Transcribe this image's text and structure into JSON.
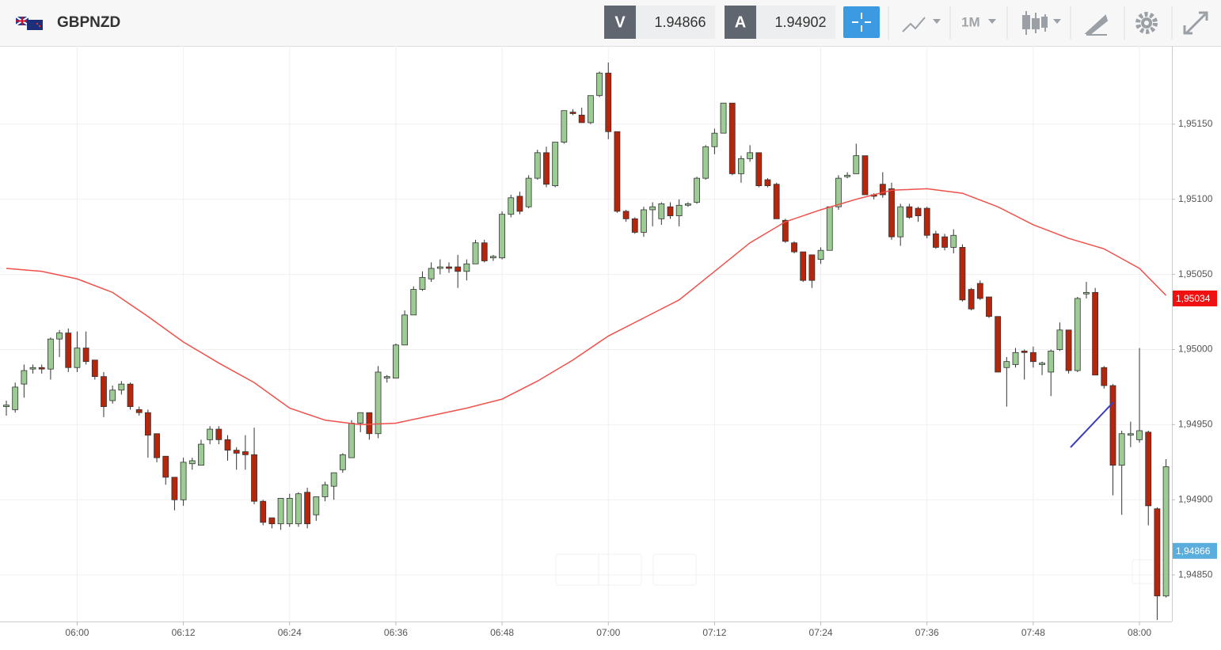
{
  "header": {
    "symbol": "GBPNZD",
    "bid_label": "V",
    "bid": "1.94866",
    "ask_label": "A",
    "ask": "1.94902",
    "timeframe": "1M"
  },
  "chart_data": {
    "type": "candlestick",
    "x": [
      "05:52",
      "05:53",
      "05:54",
      "05:55",
      "05:56",
      "05:57",
      "05:58",
      "05:59",
      "06:00",
      "06:01",
      "06:02",
      "06:03",
      "06:04",
      "06:05",
      "06:06",
      "06:07",
      "06:08",
      "06:09",
      "06:10",
      "06:11",
      "06:12",
      "06:13",
      "06:14",
      "06:15",
      "06:16",
      "06:17",
      "06:18",
      "06:19",
      "06:20",
      "06:21",
      "06:22",
      "06:23",
      "06:24",
      "06:25",
      "06:26",
      "06:27",
      "06:28",
      "06:29",
      "06:30",
      "06:31",
      "06:32",
      "06:33",
      "06:34",
      "06:35",
      "06:36",
      "06:37",
      "06:38",
      "06:39",
      "06:40",
      "06:41",
      "06:42",
      "06:43",
      "06:44",
      "06:45",
      "06:46",
      "06:47",
      "06:48",
      "06:49",
      "06:50",
      "06:51",
      "06:52",
      "06:53",
      "06:54",
      "06:55",
      "06:56",
      "06:57",
      "06:58",
      "06:59",
      "07:00",
      "07:01",
      "07:02",
      "07:03",
      "07:04",
      "07:05",
      "07:06",
      "07:07",
      "07:08",
      "07:09",
      "07:10",
      "07:11",
      "07:12",
      "07:13",
      "07:14",
      "07:15",
      "07:16",
      "07:17",
      "07:18",
      "07:19",
      "07:20",
      "07:21",
      "07:22",
      "07:23",
      "07:24",
      "07:25",
      "07:26",
      "07:27",
      "07:28",
      "07:29",
      "07:30",
      "07:31",
      "07:32",
      "07:33",
      "07:34",
      "07:35",
      "07:36",
      "07:37",
      "07:38",
      "07:39",
      "07:40",
      "07:41",
      "07:42",
      "07:43",
      "07:44",
      "07:45",
      "07:46",
      "07:47",
      "07:48",
      "07:49",
      "07:50",
      "07:51",
      "07:52",
      "07:53",
      "07:54",
      "07:55",
      "07:56",
      "07:57",
      "07:58",
      "07:59",
      "08:00",
      "08:01",
      "08:02",
      "08:03"
    ],
    "open": [
      1.94962,
      1.9496,
      1.94977,
      1.94987,
      1.94988,
      1.94987,
      1.95007,
      1.95011,
      1.94988,
      1.95001,
      1.94993,
      1.94982,
      1.94966,
      1.94973,
      1.94977,
      1.9496,
      1.94958,
      1.94944,
      1.94929,
      1.94915,
      1.949,
      1.94924,
      1.94923,
      1.9494,
      1.94947,
      1.9494,
      1.94933,
      1.94932,
      1.9493,
      1.94899,
      1.94888,
      1.94884,
      1.94884,
      1.94884,
      1.94905,
      1.9489,
      1.94902,
      1.94909,
      1.9492,
      1.94928,
      1.94951,
      1.94958,
      1.94944,
      1.94981,
      1.94981,
      1.95003,
      1.95023,
      1.9504,
      1.95047,
      1.95054,
      1.95055,
      1.95055,
      1.95052,
      1.95057,
      1.95071,
      1.95061,
      1.95061,
      1.9509,
      1.95102,
      1.95095,
      1.95114,
      1.95131,
      1.95109,
      1.95138,
      1.95158,
      1.95156,
      1.95151,
      1.95169,
      1.95184,
      1.95145,
      1.95092,
      1.95087,
      1.95078,
      1.95093,
      1.95087,
      1.95095,
      1.95089,
      1.95096,
      1.95098,
      1.95114,
      1.95135,
      1.95144,
      1.95164,
      1.95117,
      1.95127,
      1.95131,
      1.95113,
      1.9511,
      1.95086,
      1.95071,
      1.95065,
      1.95063,
      1.9506,
      1.95066,
      1.95095,
      1.95115,
      1.95117,
      1.95129,
      1.95103,
      1.9511,
      1.95107,
      1.95075,
      1.95095,
      1.95094,
      1.95094,
      1.95077,
      1.95075,
      1.95068,
      1.95068,
      1.9504,
      1.95044,
      1.95035,
      1.95022,
      1.94988,
      1.9499,
      1.94999,
      1.94998,
      1.9499,
      1.94985,
      1.95,
      1.95013,
      1.94986,
      1.95037,
      1.95038,
      1.94988,
      1.94976,
      1.94923,
      1.94943,
      1.9494,
      1.94945,
      1.94894,
      1.94836
    ],
    "high": [
      1.94966,
      1.94978,
      1.9499,
      1.9499,
      1.9499,
      1.95008,
      1.95013,
      1.95014,
      1.95012,
      1.95012,
      1.94993,
      1.94985,
      1.94976,
      1.94979,
      1.94978,
      1.94962,
      1.9496,
      1.94944,
      1.94929,
      1.94915,
      1.94928,
      1.94928,
      1.9494,
      1.94949,
      1.94949,
      1.94943,
      1.94935,
      1.94943,
      1.94948,
      1.949,
      1.94888,
      1.94901,
      1.94904,
      1.94905,
      1.94908,
      1.94902,
      1.94912,
      1.94918,
      1.94931,
      1.94953,
      1.94958,
      1.94958,
      1.94989,
      1.94983,
      1.95004,
      1.95026,
      1.95042,
      1.95052,
      1.95058,
      1.9506,
      1.95058,
      1.95063,
      1.9506,
      1.95073,
      1.95073,
      1.95063,
      1.95092,
      1.95103,
      1.95105,
      1.95116,
      1.95133,
      1.95135,
      1.95138,
      1.95159,
      1.9516,
      1.95161,
      1.95169,
      1.95185,
      1.95191,
      1.95145,
      1.95093,
      1.95088,
      1.95095,
      1.95098,
      1.95098,
      1.95098,
      1.951,
      1.95098,
      1.95115,
      1.95136,
      1.95147,
      1.95164,
      1.95164,
      1.95129,
      1.95136,
      1.95131,
      1.95114,
      1.95111,
      1.95087,
      1.95072,
      1.95065,
      1.95063,
      1.95068,
      1.95095,
      1.95116,
      1.95118,
      1.95137,
      1.95129,
      1.95104,
      1.95118,
      1.95111,
      1.95097,
      1.95097,
      1.95095,
      1.95095,
      1.95079,
      1.95077,
      1.9508,
      1.9507,
      1.95041,
      1.95046,
      1.95035,
      1.95022,
      1.94995,
      1.95001,
      1.95,
      1.95002,
      1.94992,
      1.95,
      1.95018,
      1.95013,
      1.95035,
      1.95045,
      1.95041,
      1.94989,
      1.94977,
      1.94946,
      1.94952,
      1.95001,
      1.94946,
      1.94895,
      1.94927
    ],
    "low": [
      1.94956,
      1.94958,
      1.94968,
      1.94984,
      1.94984,
      1.9498,
      1.94995,
      1.94985,
      1.94985,
      1.9499,
      1.9498,
      1.94955,
      1.94964,
      1.9497,
      1.9496,
      1.94956,
      1.94928,
      1.94925,
      1.9491,
      1.94893,
      1.94896,
      1.9492,
      1.94923,
      1.94937,
      1.94937,
      1.94926,
      1.9492,
      1.9492,
      1.94897,
      1.94883,
      1.94881,
      1.9488,
      1.94882,
      1.94882,
      1.94881,
      1.94886,
      1.94899,
      1.949,
      1.94918,
      1.94928,
      1.94945,
      1.9494,
      1.94941,
      1.94978,
      1.94981,
      1.95003,
      1.95023,
      1.95039,
      1.95045,
      1.9505,
      1.95051,
      1.95041,
      1.95046,
      1.95057,
      1.95058,
      1.95059,
      1.9506,
      1.95088,
      1.9509,
      1.95094,
      1.95113,
      1.95108,
      1.95108,
      1.95137,
      1.95156,
      1.95151,
      1.9515,
      1.95168,
      1.9514,
      1.95091,
      1.95085,
      1.95077,
      1.95075,
      1.95082,
      1.95083,
      1.95087,
      1.95082,
      1.95095,
      1.95097,
      1.95113,
      1.9513,
      1.95144,
      1.95116,
      1.95111,
      1.95125,
      1.95108,
      1.95108,
      1.95087,
      1.95071,
      1.95064,
      1.95045,
      1.95041,
      1.95057,
      1.95066,
      1.95093,
      1.95114,
      1.95117,
      1.95103,
      1.951,
      1.95101,
      1.95073,
      1.95069,
      1.95087,
      1.95085,
      1.95074,
      1.95067,
      1.95066,
      1.95064,
      1.95032,
      1.95026,
      1.95033,
      1.95021,
      1.94985,
      1.94962,
      1.94988,
      1.9498,
      1.94988,
      1.94983,
      1.94969,
      1.94999,
      1.94984,
      1.94985,
      1.95034,
      1.94983,
      1.94974,
      1.94903,
      1.9489,
      1.94935,
      1.94938,
      1.94883,
      1.9482,
      1.94835
    ],
    "close": [
      1.94963,
      1.94975,
      1.94986,
      1.94988,
      1.94987,
      1.95007,
      1.95011,
      1.94988,
      1.95001,
      1.94992,
      1.94982,
      1.94962,
      1.94973,
      1.94977,
      1.94962,
      1.94958,
      1.94943,
      1.94928,
      1.94915,
      1.949,
      1.94925,
      1.94926,
      1.94937,
      1.94947,
      1.9494,
      1.94933,
      1.94931,
      1.9493,
      1.94899,
      1.94885,
      1.94884,
      1.94901,
      1.94901,
      1.94904,
      1.94884,
      1.94902,
      1.9491,
      1.94918,
      1.9493,
      1.94951,
      1.94958,
      1.94944,
      1.94985,
      1.94982,
      1.95003,
      1.95023,
      1.9504,
      1.95048,
      1.95054,
      1.95055,
      1.95054,
      1.95052,
      1.95057,
      1.95071,
      1.95059,
      1.95062,
      1.9509,
      1.95101,
      1.95092,
      1.95114,
      1.95131,
      1.9511,
      1.95138,
      1.95159,
      1.95157,
      1.95151,
      1.95169,
      1.95184,
      1.95145,
      1.95092,
      1.95087,
      1.95078,
      1.95093,
      1.95095,
      1.95097,
      1.95089,
      1.95096,
      1.95097,
      1.95114,
      1.95135,
      1.95144,
      1.95164,
      1.95117,
      1.95127,
      1.95131,
      1.95109,
      1.95109,
      1.95087,
      1.95072,
      1.95065,
      1.95046,
      1.95046,
      1.95066,
      1.95095,
      1.95114,
      1.95116,
      1.95129,
      1.95103,
      1.95102,
      1.95103,
      1.95075,
      1.95095,
      1.95088,
      1.95089,
      1.95076,
      1.95068,
      1.95068,
      1.95076,
      1.95033,
      1.95027,
      1.95034,
      1.95022,
      1.94985,
      1.94992,
      1.94998,
      1.94998,
      1.94992,
      1.94991,
      1.94999,
      1.95013,
      1.94986,
      1.95034,
      1.95038,
      1.94983,
      1.94976,
      1.94923,
      1.94944,
      1.94944,
      1.94946,
      1.94896,
      1.94836,
      1.94922
    ],
    "up_color": "#9ccb94",
    "down_color": "#b5260c",
    "ma": {
      "color": "#f0504a",
      "x": [
        "05:52",
        "05:56",
        "06:00",
        "06:04",
        "06:08",
        "06:12",
        "06:16",
        "06:20",
        "06:24",
        "06:28",
        "06:32",
        "06:36",
        "06:40",
        "06:44",
        "06:48",
        "06:52",
        "06:56",
        "07:00",
        "07:04",
        "07:08",
        "07:12",
        "07:16",
        "07:20",
        "07:24",
        "07:28",
        "07:32",
        "07:36",
        "07:40",
        "07:44",
        "07:48",
        "07:52",
        "07:56",
        "08:00",
        "08:03"
      ],
      "values": [
        1.95054,
        1.95052,
        1.95047,
        1.95038,
        1.95022,
        1.95005,
        1.94991,
        1.94978,
        1.94961,
        1.94953,
        1.9495,
        1.94951,
        1.94956,
        1.94961,
        1.94967,
        1.94979,
        1.94993,
        1.95009,
        1.95021,
        1.95033,
        1.95052,
        1.95071,
        1.95085,
        1.95093,
        1.951,
        1.95106,
        1.95107,
        1.95104,
        1.95095,
        1.95083,
        1.95074,
        1.95067,
        1.95054,
        1.95036
      ]
    },
    "ylim": [
      1.94819,
      1.95201
    ],
    "yticks": [
      {
        "value": 1.9485,
        "label": "1,94850"
      },
      {
        "value": 1.949,
        "label": "1,94900"
      },
      {
        "value": 1.9495,
        "label": "1,94950"
      },
      {
        "value": 1.95,
        "label": "1,95000"
      },
      {
        "value": 1.9505,
        "label": "1,95050"
      },
      {
        "value": 1.951,
        "label": "1,95100"
      },
      {
        "value": 1.9515,
        "label": "1,95150"
      }
    ],
    "xticks": [
      "06:00",
      "06:12",
      "06:24",
      "06:36",
      "06:48",
      "07:00",
      "07:12",
      "07:24",
      "07:36",
      "07:48",
      "08:00"
    ],
    "grid": true,
    "price_labels": [
      {
        "value": 1.95034,
        "label": "1,95034",
        "color": "#f01010"
      },
      {
        "value": 1.94866,
        "label": "1,94866",
        "color": "#5aaede"
      }
    ]
  }
}
